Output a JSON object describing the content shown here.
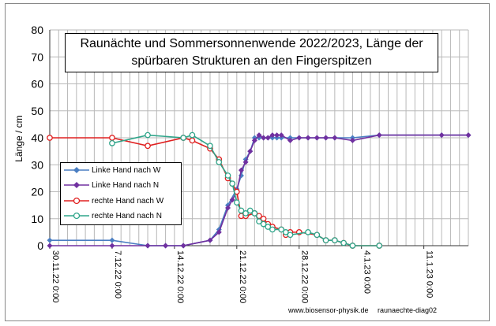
{
  "chart_data": {
    "type": "line",
    "title_lines": [
      "Raunächte  und Sommersonnenwende 2022/2023, Länge der",
      "spürbaren Strukturen an den Fingerspitzen"
    ],
    "ylabel": "Länge / cm",
    "ylim": [
      0,
      80
    ],
    "yticks": [
      0,
      10,
      20,
      30,
      40,
      50,
      60,
      70,
      80
    ],
    "xlim": [
      "30.11.22",
      "16.1.23"
    ],
    "xtick_labels": [
      "30.11.22 0:00",
      "7.12.22 0:00",
      "14.12.22 0:00",
      "21.12.22 0:00",
      "28.12.22 0:00",
      "4.1.23 0:00",
      "11.1.23 0:00"
    ],
    "grid": true,
    "legend_position": "left",
    "series": [
      {
        "name": "Linke Hand nach W",
        "color": "#4a7ec2",
        "marker": "diamond",
        "points": [
          [
            "30.11.22",
            2
          ],
          [
            "7.12.22",
            2
          ],
          [
            "11.12.22",
            0
          ],
          [
            "13.12.22",
            0
          ],
          [
            "15.12.22",
            0
          ],
          [
            "18.12.22",
            2
          ],
          [
            "19.12.22",
            6
          ],
          [
            "20.12.22",
            15
          ],
          [
            "21.12.22",
            21
          ],
          [
            "21.12.22 12:00",
            26
          ],
          [
            "22.12.22",
            32
          ],
          [
            "22.12.22 12:00",
            35
          ],
          [
            "23.12.22",
            40
          ],
          [
            "23.12.22 12:00",
            40
          ],
          [
            "24.12.22",
            40
          ],
          [
            "24.12.22 12:00",
            40
          ],
          [
            "25.12.22",
            40
          ],
          [
            "25.12.22 12:00",
            40
          ],
          [
            "26.12.22",
            40
          ],
          [
            "27.12.22",
            40
          ],
          [
            "28.12.22",
            40
          ],
          [
            "29.12.22",
            40
          ],
          [
            "30.12.22",
            40
          ],
          [
            "31.12.22",
            40
          ],
          [
            "1.1.23",
            40
          ],
          [
            "3.1.23",
            40
          ],
          [
            "6.1.23",
            41
          ],
          [
            "13.1.23",
            41
          ],
          [
            "16.1.23",
            41
          ]
        ]
      },
      {
        "name": "Linke Hand nach N",
        "color": "#7030a0",
        "marker": "diamond",
        "points": [
          [
            "30.11.22",
            0
          ],
          [
            "7.12.22",
            0
          ],
          [
            "11.12.22",
            0
          ],
          [
            "13.12.22",
            0
          ],
          [
            "15.12.22",
            0
          ],
          [
            "18.12.22",
            2
          ],
          [
            "19.12.22",
            5
          ],
          [
            "20.12.22",
            14
          ],
          [
            "20.12.22 12:00",
            17
          ],
          [
            "21.12.22",
            20
          ],
          [
            "21.12.22 12:00",
            28
          ],
          [
            "22.12.22",
            31
          ],
          [
            "22.12.22 12:00",
            35
          ],
          [
            "23.12.22",
            39
          ],
          [
            "23.12.22 12:00",
            41
          ],
          [
            "24.12.22",
            40
          ],
          [
            "24.12.22 12:00",
            40
          ],
          [
            "25.12.22",
            41
          ],
          [
            "25.12.22 12:00",
            41
          ],
          [
            "26.12.22",
            41
          ],
          [
            "27.12.22",
            39
          ],
          [
            "28.12.22",
            40
          ],
          [
            "29.12.22",
            40
          ],
          [
            "30.12.22",
            40
          ],
          [
            "31.12.22",
            40
          ],
          [
            "1.1.23",
            40
          ],
          [
            "3.1.23",
            39
          ],
          [
            "6.1.23",
            41
          ],
          [
            "13.1.23",
            41
          ],
          [
            "16.1.23",
            41
          ]
        ]
      },
      {
        "name": "rechte Hand nach W",
        "color": "#e02020",
        "marker": "circle",
        "points": [
          [
            "30.11.22",
            40
          ],
          [
            "7.12.22",
            40
          ],
          [
            "11.12.22",
            37
          ],
          [
            "15.12.22",
            40
          ],
          [
            "16.12.22",
            39
          ],
          [
            "18.12.22",
            36
          ],
          [
            "19.12.22",
            32
          ],
          [
            "20.12.22",
            25
          ],
          [
            "20.12.22 12:00",
            23
          ],
          [
            "21.12.22",
            20
          ],
          [
            "21.12.22 12:00",
            11
          ],
          [
            "22.12.22",
            11
          ],
          [
            "23.12.22",
            12
          ],
          [
            "23.12.22 12:00",
            11
          ],
          [
            "24.12.22",
            10
          ],
          [
            "24.12.22 12:00",
            8
          ],
          [
            "25.12.22",
            7
          ],
          [
            "26.12.22",
            6
          ],
          [
            "26.12.22 12:00",
            4
          ],
          [
            "27.12.22",
            5
          ],
          [
            "28.12.22",
            5
          ],
          [
            "30.12.22",
            4
          ],
          [
            "31.12.22",
            2
          ],
          [
            "1.1.23",
            2
          ],
          [
            "2.1.23",
            1
          ],
          [
            "3.1.23",
            0
          ],
          [
            "6.1.23",
            0
          ]
        ]
      },
      {
        "name": "rechte Hand nach N",
        "color": "#2fa58a",
        "marker": "circle",
        "points": [
          [
            "7.12.22",
            38
          ],
          [
            "11.12.22",
            41
          ],
          [
            "15.12.22",
            40
          ],
          [
            "16.12.22",
            41
          ],
          [
            "18.12.22",
            37
          ],
          [
            "19.12.22",
            31
          ],
          [
            "20.12.22",
            26
          ],
          [
            "20.12.22 12:00",
            23
          ],
          [
            "21.12.22",
            16
          ],
          [
            "21.12.22 12:00",
            13
          ],
          [
            "22.12.22",
            12
          ],
          [
            "22.12.22 12:00",
            13
          ],
          [
            "23.12.22",
            12
          ],
          [
            "23.12.22 12:00",
            9
          ],
          [
            "24.12.22",
            8
          ],
          [
            "24.12.22 12:00",
            7
          ],
          [
            "25.12.22",
            6
          ],
          [
            "26.12.22",
            6
          ],
          [
            "26.12.22 12:00",
            5
          ],
          [
            "27.12.22",
            4
          ],
          [
            "29.12.22",
            5
          ],
          [
            "30.12.22",
            4
          ],
          [
            "31.12.22",
            2
          ],
          [
            "1.1.23",
            2
          ],
          [
            "2.1.23",
            1
          ],
          [
            "3.1.23",
            0
          ],
          [
            "6.1.23",
            0
          ]
        ]
      }
    ],
    "footer_left": "www.biosensor-physik.de",
    "footer_right": "raunaechte-diag02"
  }
}
